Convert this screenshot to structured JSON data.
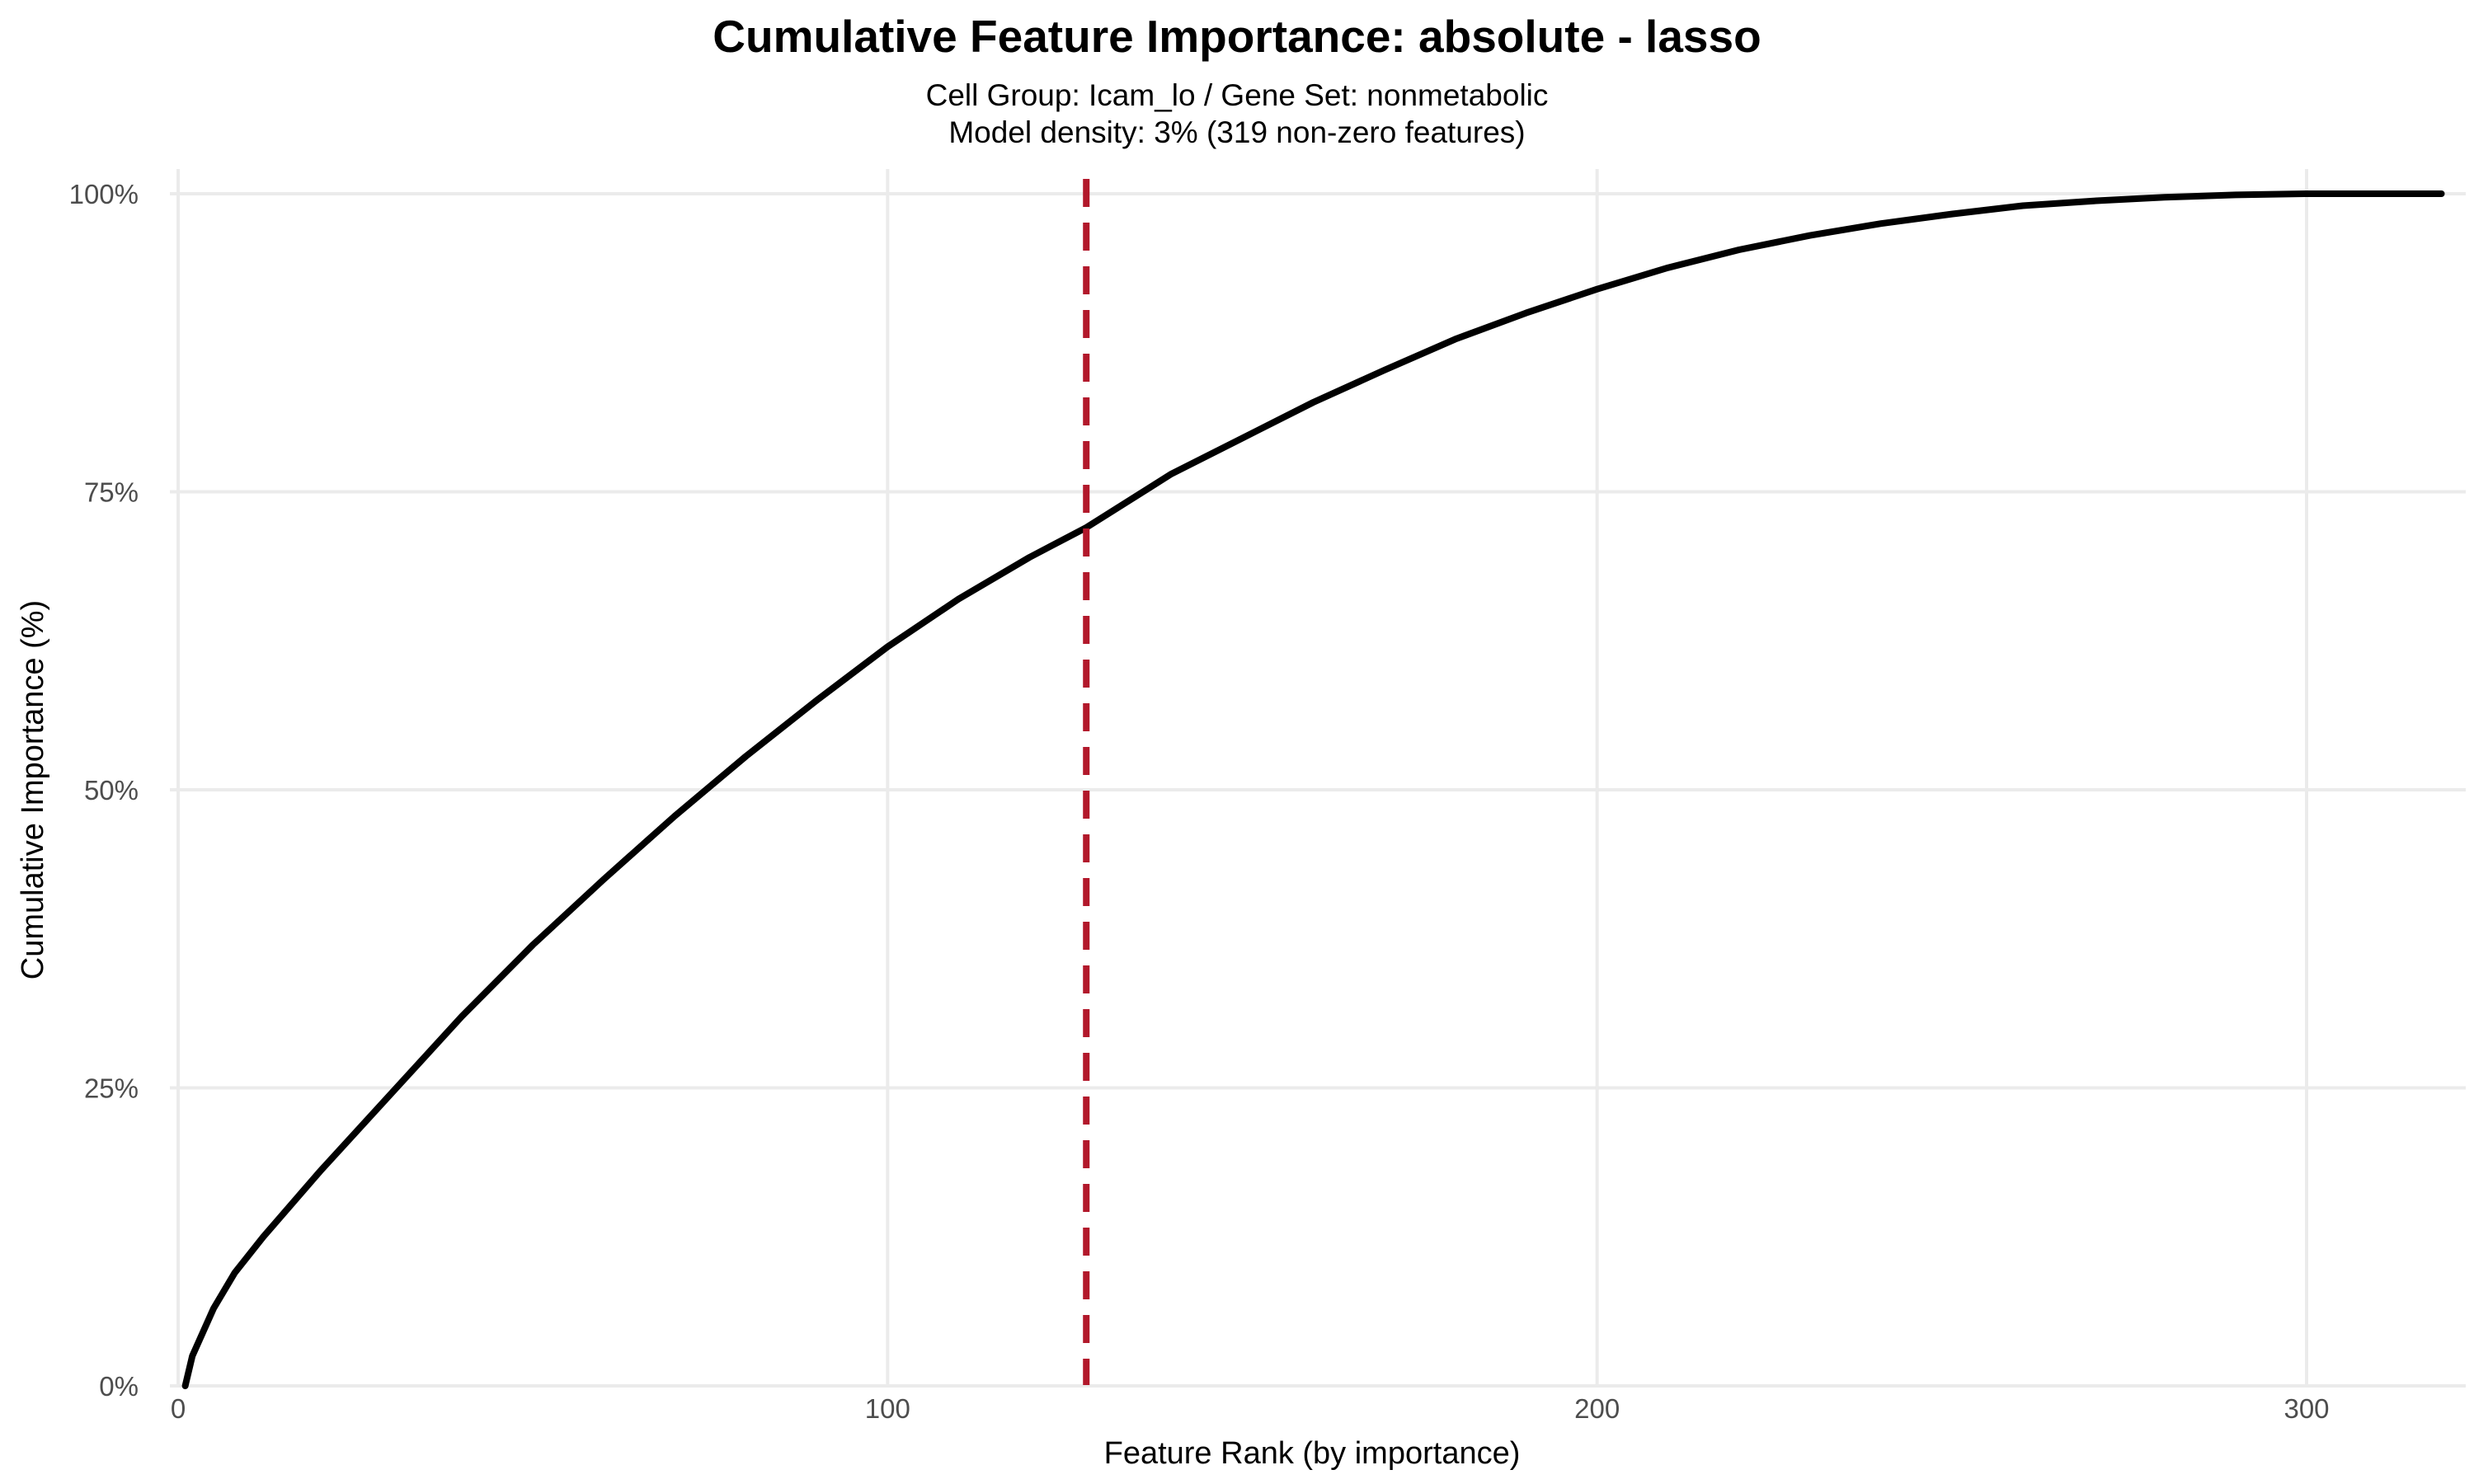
{
  "chart_data": {
    "type": "line",
    "title": "Cumulative Feature Importance: absolute - lasso",
    "subtitle_lines": [
      "Cell Group: Icam_lo / Gene Set: nonmetabolic",
      "Model density: 3% (319 non-zero features)"
    ],
    "xlabel": "Feature Rank (by importance)",
    "ylabel": "Cumulative Importance (%)",
    "xlim": [
      0,
      321
    ],
    "ylim": [
      0,
      100
    ],
    "x_ticks": [
      0,
      100,
      200,
      300
    ],
    "x_tick_labels": [
      "0",
      "100",
      "200",
      "300"
    ],
    "y_ticks": [
      0,
      25,
      50,
      75,
      100
    ],
    "y_tick_labels": [
      "0%",
      "25%",
      "50%",
      "75%",
      "100%"
    ],
    "grid": true,
    "legend": "none",
    "series": [
      {
        "color": "#000000",
        "x": [
          1,
          2,
          5,
          8,
          12,
          20,
          30,
          40,
          50,
          60,
          70,
          80,
          90,
          100,
          110,
          120,
          128,
          140,
          150,
          160,
          170,
          180,
          190,
          200,
          210,
          220,
          230,
          240,
          250,
          260,
          270,
          280,
          290,
          300,
          310,
          319
        ],
        "y": [
          0,
          2.5,
          6.5,
          9.5,
          12.5,
          18,
          24.5,
          31,
          37,
          42.5,
          47.8,
          52.8,
          57.5,
          62,
          66,
          69.5,
          72,
          76.5,
          79.5,
          82.5,
          85.2,
          87.8,
          90,
          92,
          93.8,
          95.3,
          96.5,
          97.5,
          98.3,
          99,
          99.4,
          99.7,
          99.9,
          100,
          100,
          100
        ]
      }
    ],
    "vline": {
      "x": 128,
      "color": "#b2182b",
      "style": "dashed"
    }
  }
}
